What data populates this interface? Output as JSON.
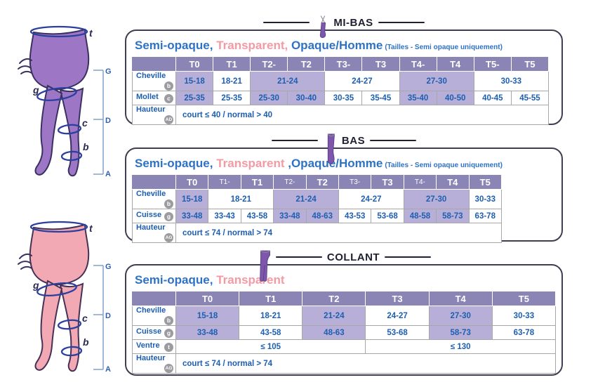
{
  "diagram_labels": {
    "waist": "t",
    "thigh": "g",
    "calf": "c",
    "ankle": "b",
    "ruler_top": "G",
    "ruler_mid": "D",
    "ruler_bottom": "A"
  },
  "colors": {
    "header_purple": "#8b85b6",
    "highlight_purple": "#b7afd7",
    "table_text_blue": "#1c5fb2",
    "heading_blue": "#2e72c5",
    "heading_pink": "#f49aa3",
    "title_dark": "#1f2030",
    "figure_purple": "#9d77c6",
    "figure_pink": "#f2a9b4"
  },
  "sections": [
    {
      "title": "MI-BAS",
      "subtitle": [
        {
          "text": "Semi-opaque,",
          "color": "blue"
        },
        {
          "text": " Transparent,",
          "color": "pink"
        },
        {
          "text": " Opaque/Homme",
          "color": "blue"
        }
      ],
      "note": "(Tailles - Semi opaque uniquement)",
      "columns": [
        {
          "label": "T0"
        },
        {
          "label": "T1"
        },
        {
          "label": "T2-"
        },
        {
          "label": "T2"
        },
        {
          "label": "T3-"
        },
        {
          "label": "T3"
        },
        {
          "label": "T4-"
        },
        {
          "label": "T4"
        },
        {
          "label": "T5-"
        },
        {
          "label": "T5"
        }
      ],
      "rows": [
        {
          "label": "Cheville",
          "badge": "b",
          "cells": [
            {
              "text": "15-18",
              "hl": true
            },
            {
              "text": "18-21"
            },
            {
              "text": "21-24",
              "span": 2,
              "hl": true
            },
            {
              "text": "24-27",
              "span": 2
            },
            {
              "text": "27-30",
              "span": 2,
              "hl": true
            },
            {
              "text": "30-33",
              "span": 2
            }
          ]
        },
        {
          "label": "Mollet",
          "badge": "c",
          "cells": [
            {
              "text": "25-35",
              "hl": true
            },
            {
              "text": "25-35"
            },
            {
              "text": "25-30",
              "hl": true
            },
            {
              "text": "30-40",
              "hl": true
            },
            {
              "text": "30-35"
            },
            {
              "text": "35-45"
            },
            {
              "text": "35-40",
              "hl": true
            },
            {
              "text": "40-50",
              "hl": true
            },
            {
              "text": "40-45"
            },
            {
              "text": "45-55"
            }
          ]
        },
        {
          "label": "Hauteur",
          "badge": "AD",
          "cells": [
            {
              "text": "court ≤ 40 / normal > 40",
              "span": 10,
              "align": "left"
            }
          ]
        }
      ]
    },
    {
      "title": "BAS",
      "subtitle": [
        {
          "text": "Semi-opaque,",
          "color": "blue"
        },
        {
          "text": " Transparent ",
          "color": "pink"
        },
        {
          "text": ",Opaque/Homme",
          "color": "blue"
        }
      ],
      "note": "(Tailles - Semi opaque uniquement)",
      "columns": [
        {
          "label": "T0"
        },
        {
          "label": "T1-",
          "small": true
        },
        {
          "label": "T1"
        },
        {
          "label": "T2-",
          "small": true
        },
        {
          "label": "T2"
        },
        {
          "label": "T3-",
          "small": true
        },
        {
          "label": "T3"
        },
        {
          "label": "T4-",
          "small": true
        },
        {
          "label": "T4"
        },
        {
          "label": "T5"
        }
      ],
      "rows": [
        {
          "label": "Cheville",
          "badge": "b",
          "cells": [
            {
              "text": "15-18",
              "hl": true
            },
            {
              "text": "18-21",
              "span": 2
            },
            {
              "text": "21-24",
              "span": 2,
              "hl": true
            },
            {
              "text": "24-27",
              "span": 2
            },
            {
              "text": "27-30",
              "span": 2,
              "hl": true
            },
            {
              "text": "30-33"
            }
          ]
        },
        {
          "label": "Cuisse",
          "badge": "g",
          "cells": [
            {
              "text": "33-48",
              "hl": true
            },
            {
              "text": "33-43"
            },
            {
              "text": "43-58"
            },
            {
              "text": "33-48",
              "hl": true
            },
            {
              "text": "48-63",
              "hl": true
            },
            {
              "text": "43-53"
            },
            {
              "text": "53-68"
            },
            {
              "text": "48-58",
              "hl": true
            },
            {
              "text": "58-73",
              "hl": true
            },
            {
              "text": "63-78"
            }
          ]
        },
        {
          "label": "Hauteur",
          "badge": "AG",
          "cells": [
            {
              "text": "court ≤ 74 / normal > 74",
              "span": 10,
              "align": "left"
            }
          ]
        }
      ]
    },
    {
      "title": "COLLANT",
      "subtitle": [
        {
          "text": "Semi-opaque,",
          "color": "blue"
        },
        {
          "text": " Transparent",
          "color": "pink"
        }
      ],
      "note": "",
      "columns": [
        {
          "label": "T0"
        },
        {
          "label": "T1"
        },
        {
          "label": "T2"
        },
        {
          "label": "T3"
        },
        {
          "label": "T4"
        },
        {
          "label": "T5"
        }
      ],
      "rows": [
        {
          "label": "Cheville",
          "badge": "b",
          "cells": [
            {
              "text": "15-18",
              "hl": true
            },
            {
              "text": "18-21"
            },
            {
              "text": "21-24",
              "hl": true
            },
            {
              "text": "24-27"
            },
            {
              "text": "27-30",
              "hl": true
            },
            {
              "text": "30-33"
            }
          ]
        },
        {
          "label": "Cuisse",
          "badge": "g",
          "cells": [
            {
              "text": "33-48",
              "hl": true
            },
            {
              "text": "43-58"
            },
            {
              "text": "48-63",
              "hl": true
            },
            {
              "text": "53-68"
            },
            {
              "text": "58-73",
              "hl": true
            },
            {
              "text": "63-78"
            }
          ]
        },
        {
          "label": "Ventre",
          "badge": "t",
          "cells": [
            {
              "text": "≤ 105",
              "span": 3
            },
            {
              "text": "≤ 130",
              "span": 3
            }
          ]
        },
        {
          "label": "Hauteur",
          "badge": "AG",
          "cells": [
            {
              "text": "court ≤ 74 / normal > 74",
              "span": 6,
              "align": "left"
            }
          ]
        }
      ]
    }
  ]
}
